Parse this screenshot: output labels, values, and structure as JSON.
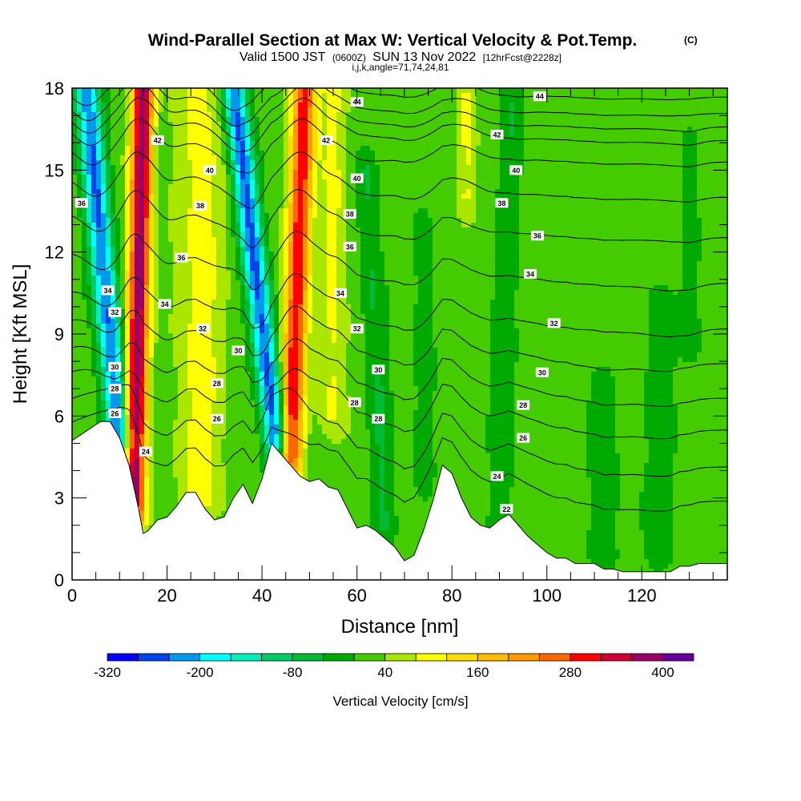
{
  "header": {
    "title": "Wind-Parallel Section at Max W: Vertical Velocity & Pot.Temp.",
    "title_tag": "(C)",
    "subtitle_a": "Valid 1500 JST",
    "subtitle_b": "(0600Z)",
    "subtitle_c": "SUN 13 Nov 2022",
    "subtitle_d": "[12hrFcst@2228z]",
    "subtitle_e": "i,j,k,angle=71,74,24,81"
  },
  "chart_data": {
    "type": "heatmap",
    "title": "Wind-Parallel Section at Max W: Vertical Velocity & Pot.Temp.",
    "xlabel": "Distance [nm]",
    "ylabel": "Height [Kft MSL]",
    "xlim": [
      0,
      138
    ],
    "ylim": [
      0,
      18
    ],
    "x_ticks": [
      "0",
      "20",
      "40",
      "60",
      "80",
      "100",
      "120"
    ],
    "y_ticks": [
      "0",
      "3",
      "6",
      "9",
      "12",
      "15",
      "18"
    ],
    "terrain": {
      "x": [
        0,
        6,
        8,
        10,
        12,
        14,
        15,
        16,
        18,
        20,
        22,
        24,
        26,
        28,
        30,
        32,
        34,
        36,
        38,
        40,
        42,
        44,
        46,
        48,
        50,
        52,
        54,
        56,
        58,
        60,
        62,
        64,
        66,
        68,
        70,
        72,
        74,
        76,
        78,
        80,
        82,
        84,
        86,
        88,
        90,
        92,
        94,
        96,
        98,
        100,
        102,
        104,
        106,
        108,
        110,
        112,
        114,
        116,
        118,
        120,
        122,
        124,
        126,
        128,
        130,
        132,
        134,
        136,
        138
      ],
      "height_kft": [
        5.1,
        5.8,
        5.8,
        5.2,
        4.2,
        2.6,
        1.7,
        1.8,
        2.2,
        2.3,
        2.7,
        3.2,
        3.2,
        2.6,
        2.2,
        2.3,
        3.0,
        3.5,
        2.8,
        3.7,
        5.0,
        4.6,
        4.2,
        3.8,
        3.6,
        3.7,
        3.4,
        3.3,
        2.6,
        1.9,
        2.0,
        1.8,
        1.5,
        1.2,
        0.7,
        0.9,
        1.8,
        2.9,
        4.2,
        3.9,
        3.0,
        2.3,
        2.0,
        1.9,
        2.2,
        2.4,
        2.0,
        1.6,
        1.3,
        1.0,
        0.8,
        0.8,
        0.6,
        0.6,
        0.6,
        0.4,
        0.4,
        0.3,
        0.3,
        0.3,
        0.3,
        0.3,
        0.3,
        0.5,
        0.5,
        0.6,
        0.6,
        0.6,
        0.6
      ]
    },
    "vertical_velocity_features": [
      {
        "kind": "downdraft",
        "x_top": 3,
        "x_bottom": 10,
        "y_top": 18,
        "y_bottom": 5.0,
        "peak": -260,
        "width": 2.6
      },
      {
        "kind": "updraft",
        "x_top": 15,
        "x_bottom": 13,
        "y_top": 18,
        "y_bottom": 2.5,
        "peak": 380,
        "width": 2.2
      },
      {
        "kind": "updraft",
        "x_top": 27,
        "x_bottom": 27,
        "y_top": 18,
        "y_bottom": 3.0,
        "peak": 80,
        "width": 5.0
      },
      {
        "kind": "downdraft",
        "x_top": 34,
        "x_bottom": 43,
        "y_top": 18,
        "y_bottom": 5.0,
        "peak": -270,
        "width": 2.5
      },
      {
        "kind": "updraft",
        "x_top": 49,
        "x_bottom": 46,
        "y_top": 18,
        "y_bottom": 4.5,
        "peak": 300,
        "width": 2.4
      },
      {
        "kind": "updraft",
        "x_top": 55,
        "x_bottom": 55,
        "y_top": 18,
        "y_bottom": 6.0,
        "peak": 70,
        "width": 3.0
      },
      {
        "kind": "updraft",
        "x_top": 83,
        "x_bottom": 83,
        "y_top": 18,
        "y_bottom": 14.0,
        "peak": 70,
        "width": 2.0
      },
      {
        "kind": "downdraft",
        "x_top": 62,
        "x_bottom": 66,
        "y_top": 15,
        "y_bottom": 2.0,
        "peak": -60,
        "width": 2.5
      },
      {
        "kind": "downdraft",
        "x_top": 74,
        "x_bottom": 74,
        "y_top": 13,
        "y_bottom": 4.0,
        "peak": -50,
        "width": 2.0
      },
      {
        "kind": "downdraft",
        "x_top": 93,
        "x_bottom": 90,
        "y_top": 18,
        "y_bottom": 2.0,
        "peak": -50,
        "width": 2.5
      },
      {
        "kind": "downdraft",
        "x_top": 112,
        "x_bottom": 112,
        "y_top": 7.0,
        "y_bottom": 1.0,
        "peak": -50,
        "width": 3.0
      },
      {
        "kind": "downdraft",
        "x_top": 125,
        "x_bottom": 123,
        "y_top": 10.0,
        "y_bottom": 1.0,
        "peak": -50,
        "width": 3.0
      },
      {
        "kind": "downdraft",
        "x_top": 130,
        "x_bottom": 130,
        "y_top": 16.0,
        "y_bottom": 9.0,
        "peak": -40,
        "width": 2.0
      }
    ],
    "potential_temperature": {
      "units": "C",
      "levels": [
        22,
        24,
        26,
        28,
        30,
        32,
        34,
        36,
        38,
        40,
        42,
        44
      ],
      "far_field_height_kft": [
        2.5,
        3.8,
        5.2,
        6.4,
        7.7,
        9.0,
        10.7,
        12.4,
        13.9,
        15.2,
        16.5,
        17.6
      ],
      "labels": [
        {
          "text": "36",
          "x": 2,
          "y": 13.8
        },
        {
          "text": "34",
          "x": 7.5,
          "y": 10.6
        },
        {
          "text": "32",
          "x": 9,
          "y": 9.8
        },
        {
          "text": "30",
          "x": 9,
          "y": 7.8
        },
        {
          "text": "28",
          "x": 9,
          "y": 7.0
        },
        {
          "text": "26",
          "x": 9,
          "y": 6.1
        },
        {
          "text": "24",
          "x": 15.5,
          "y": 4.7
        },
        {
          "text": "42",
          "x": 18,
          "y": 16.1
        },
        {
          "text": "40",
          "x": 29,
          "y": 15.0
        },
        {
          "text": "38",
          "x": 27,
          "y": 13.7
        },
        {
          "text": "36",
          "x": 23,
          "y": 11.8
        },
        {
          "text": "34",
          "x": 19.5,
          "y": 10.1
        },
        {
          "text": "32",
          "x": 27.5,
          "y": 9.2
        },
        {
          "text": "30",
          "x": 35,
          "y": 8.4
        },
        {
          "text": "28",
          "x": 30.5,
          "y": 7.2
        },
        {
          "text": "26",
          "x": 30.5,
          "y": 5.9
        },
        {
          "text": "44",
          "x": 60,
          "y": 17.5
        },
        {
          "text": "42",
          "x": 53.5,
          "y": 16.1
        },
        {
          "text": "40",
          "x": 60,
          "y": 14.7
        },
        {
          "text": "38",
          "x": 58.5,
          "y": 13.4
        },
        {
          "text": "36",
          "x": 58.5,
          "y": 12.2
        },
        {
          "text": "34",
          "x": 56.5,
          "y": 10.5
        },
        {
          "text": "32",
          "x": 60,
          "y": 9.2
        },
        {
          "text": "30",
          "x": 64.5,
          "y": 7.7
        },
        {
          "text": "28",
          "x": 59.5,
          "y": 6.5
        },
        {
          "text": "28",
          "x": 64.5,
          "y": 5.9
        },
        {
          "text": "44",
          "x": 98.5,
          "y": 17.7
        },
        {
          "text": "42",
          "x": 89.5,
          "y": 16.3
        },
        {
          "text": "40",
          "x": 93.5,
          "y": 15.0
        },
        {
          "text": "38",
          "x": 90.5,
          "y": 13.8
        },
        {
          "text": "36",
          "x": 98,
          "y": 12.6
        },
        {
          "text": "34",
          "x": 96.5,
          "y": 11.2
        },
        {
          "text": "32",
          "x": 101.5,
          "y": 9.4
        },
        {
          "text": "30",
          "x": 99,
          "y": 7.6
        },
        {
          "text": "28",
          "x": 95,
          "y": 6.4
        },
        {
          "text": "26",
          "x": 95,
          "y": 5.2
        },
        {
          "text": "24",
          "x": 89.5,
          "y": 3.8
        },
        {
          "text": "22",
          "x": 91.5,
          "y": 2.6
        }
      ]
    },
    "colorbar": {
      "title": "Vertical Velocity [cm/s]",
      "bounds": [
        -320,
        -280,
        -240,
        -200,
        -160,
        -120,
        -80,
        -40,
        0,
        40,
        80,
        120,
        160,
        200,
        240,
        280,
        320,
        360,
        400,
        440
      ],
      "colors": [
        "#0000ff",
        "#0044ee",
        "#0099ee",
        "#00ffff",
        "#00eebb",
        "#00cc66",
        "#00bb33",
        "#00aa00",
        "#44cc00",
        "#aae600",
        "#ffff00",
        "#ffdd00",
        "#ffbb00",
        "#ff9900",
        "#ff6600",
        "#ff0000",
        "#cc0033",
        "#990066",
        "#660099"
      ],
      "tick_labels": [
        "-320",
        "-200",
        "-80",
        "40",
        "160",
        "280",
        "400"
      ]
    }
  }
}
